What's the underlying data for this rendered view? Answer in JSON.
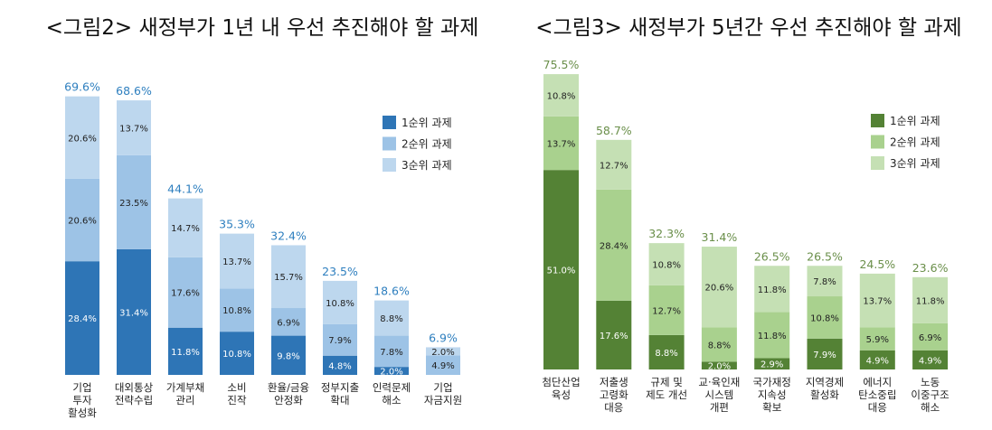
{
  "chart_data": [
    {
      "type": "bar",
      "stacked": true,
      "title": "<그림2> 새정부가 1년 내 우선 추진해야 할 과제",
      "categories": [
        [
          "기업",
          "투자",
          "활성화"
        ],
        [
          "대외통상",
          "전략수립"
        ],
        [
          "가계부채",
          "관리"
        ],
        [
          "소비",
          "진작"
        ],
        [
          "환율/금융",
          "안정화"
        ],
        [
          "정부지출",
          "확대"
        ],
        [
          "인력문제",
          "해소"
        ],
        [
          "기업",
          "자금지원"
        ]
      ],
      "series": [
        {
          "name": "1순위 과제",
          "color": "#2e75b6",
          "values": [
            28.4,
            31.4,
            11.8,
            10.8,
            9.8,
            4.8,
            2.0,
            0
          ]
        },
        {
          "name": "2순위 과제",
          "color": "#9dc3e6",
          "values": [
            20.6,
            23.5,
            17.6,
            10.8,
            6.9,
            7.9,
            7.8,
            4.9
          ]
        },
        {
          "name": "3순위 과제",
          "color": "#bdd7ee",
          "values": [
            20.6,
            13.7,
            14.7,
            13.7,
            15.7,
            10.8,
            8.8,
            2.0
          ]
        }
      ],
      "totals": [
        69.6,
        68.6,
        44.1,
        35.3,
        32.4,
        23.5,
        18.6,
        6.9
      ],
      "total_color": "#2e7fbf",
      "value_suffix": "%",
      "legend_position": "top-right",
      "grid": false
    },
    {
      "type": "bar",
      "stacked": true,
      "title": "<그림3> 새정부가 5년간 우선 추진해야 할 과제",
      "categories": [
        [
          "첨단산업",
          "육성"
        ],
        [
          "저출생",
          "고령화",
          "대응"
        ],
        [
          "규제 및",
          "제도 개선"
        ],
        [
          "교·육인재",
          "시스템",
          "개편"
        ],
        [
          "국가재정",
          "지속성",
          "확보"
        ],
        [
          "지역경제",
          "활성화"
        ],
        [
          "에너지",
          "탄소중립",
          "대응"
        ],
        [
          "노동",
          "이중구조",
          "해소"
        ]
      ],
      "series": [
        {
          "name": "1순위 과제",
          "color": "#548235",
          "values": [
            51.0,
            17.6,
            8.8,
            2.0,
            2.9,
            7.9,
            4.9,
            4.9
          ]
        },
        {
          "name": "2순위 과제",
          "color": "#a9d18e",
          "values": [
            13.7,
            28.4,
            12.7,
            8.8,
            11.8,
            10.8,
            5.9,
            6.9
          ]
        },
        {
          "name": "3순위 과제",
          "color": "#c5e0b4",
          "values": [
            10.8,
            12.7,
            10.8,
            20.6,
            11.8,
            7.8,
            13.7,
            11.8
          ]
        }
      ],
      "totals": [
        75.5,
        58.7,
        32.3,
        31.4,
        26.5,
        26.5,
        24.5,
        23.6
      ],
      "total_color": "#6a8f4a",
      "value_suffix": "%",
      "legend_position": "top-right",
      "grid": false
    }
  ]
}
